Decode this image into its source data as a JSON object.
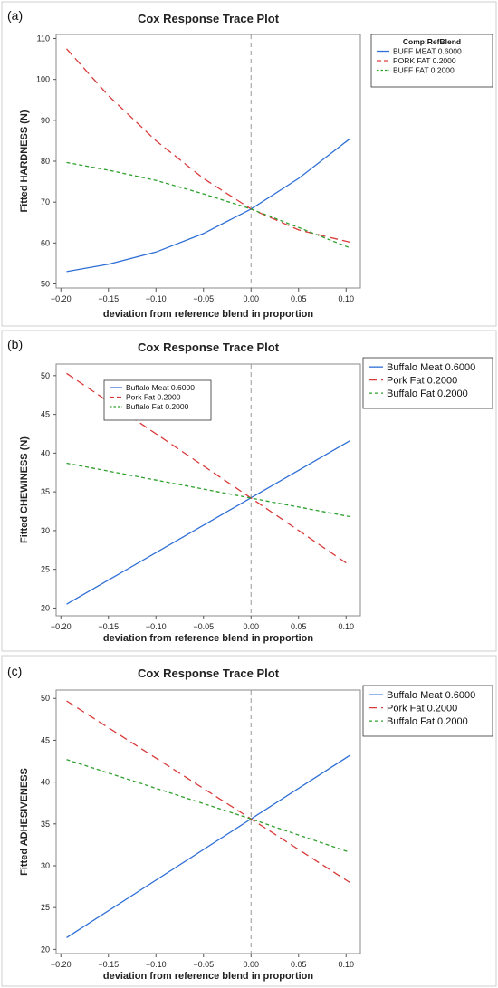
{
  "colors": {
    "series": [
      "#2f6fd6",
      "#d93a3a",
      "#2ca02c"
    ],
    "grid_reference": "#999999",
    "background": "#ffffff"
  },
  "chart_data": [
    {
      "type": "line",
      "panel_label": "(a)",
      "title": "Cox Response Trace Plot",
      "xlabel": "deviation from reference blend in proportion",
      "ylabel": "Fitted HARDNESS (N)",
      "xlim": [
        -0.205,
        0.115
      ],
      "ylim": [
        49,
        111
      ],
      "xticks": [
        -0.2,
        -0.15,
        -0.1,
        -0.05,
        0.0,
        0.05,
        0.1
      ],
      "xtick_labels": [
        "−0.20",
        "−0.15",
        "−0.10",
        "−0.05",
        "0.00",
        "0.05",
        "0.10"
      ],
      "yticks": [
        50,
        60,
        70,
        80,
        90,
        100,
        110
      ],
      "ytick_labels": [
        "50",
        "60",
        "70",
        "80",
        "90",
        "100",
        "110"
      ],
      "reference_x": 0,
      "legend": {
        "title": "Comp:RefBlend",
        "placement": "outside-top-right",
        "style": "small"
      },
      "series": [
        {
          "name": "BUFF MEAT  0.6000",
          "dash": "solid",
          "x": [
            -0.194,
            -0.15,
            -0.1,
            -0.05,
            0.0,
            0.05,
            0.104
          ],
          "y": [
            53.0,
            54.8,
            57.8,
            62.3,
            68.3,
            75.8,
            85.5
          ]
        },
        {
          "name": "PORK FAT  0.2000",
          "dash": "long",
          "x": [
            -0.194,
            -0.15,
            -0.1,
            -0.05,
            0.0,
            0.05,
            0.104
          ],
          "y": [
            107.5,
            96.0,
            85.0,
            75.8,
            68.3,
            63.2,
            60.2
          ]
        },
        {
          "name": "BUFF FAT  0.2000",
          "dash": "short",
          "x": [
            -0.194,
            -0.15,
            -0.1,
            -0.05,
            0.0,
            0.05,
            0.104
          ],
          "y": [
            79.7,
            77.8,
            75.3,
            72.0,
            68.3,
            63.8,
            58.8
          ]
        }
      ]
    },
    {
      "type": "line",
      "panel_label": "(b)",
      "title": "Cox Response Trace Plot",
      "xlabel": "deviation from reference blend in proportion",
      "ylabel": "Fitted CHEWINESS (N)",
      "xlim": [
        -0.205,
        0.115
      ],
      "ylim": [
        19,
        51.5
      ],
      "xticks": [
        -0.2,
        -0.15,
        -0.1,
        -0.05,
        0.0,
        0.05,
        0.1
      ],
      "xtick_labels": [
        "−0.20",
        "−0.15",
        "−0.10",
        "−0.05",
        "0.00",
        "0.05",
        "0.10"
      ],
      "yticks": [
        20,
        25,
        30,
        35,
        40,
        45,
        50
      ],
      "ytick_labels": [
        "20",
        "25",
        "30",
        "35",
        "40",
        "45",
        "50"
      ],
      "reference_x": 0,
      "legends": [
        {
          "placement": "inside-upper-left",
          "style": "small",
          "entries": [
            "Buffalo Meat 0.6000",
            "Pork Fat 0.2000",
            "Buffalo Fat 0.2000"
          ]
        },
        {
          "placement": "outside-top-right",
          "style": "large",
          "entries": [
            "Buffalo Meat 0.6000",
            "Pork Fat 0.2000",
            "Buffalo Fat 0.2000"
          ]
        }
      ],
      "series": [
        {
          "name": "Buffalo Meat 0.6000",
          "dash": "solid",
          "x": [
            -0.194,
            0.104
          ],
          "y": [
            20.5,
            41.6
          ]
        },
        {
          "name": "Pork Fat 0.2000",
          "dash": "long",
          "x": [
            -0.194,
            0.0,
            0.104
          ],
          "y": [
            50.3,
            34.2,
            25.5
          ]
        },
        {
          "name": "Buffalo Fat 0.2000",
          "dash": "short",
          "x": [
            -0.194,
            0.0,
            0.104
          ],
          "y": [
            38.7,
            34.2,
            31.8
          ]
        }
      ]
    },
    {
      "type": "line",
      "panel_label": "(c)",
      "title": "Cox Response Trace Plot",
      "xlabel": "deviation from reference blend in proportion",
      "ylabel": "Fitted ADHESIVENESS",
      "xlim": [
        -0.205,
        0.115
      ],
      "ylim": [
        19.5,
        51
      ],
      "xticks": [
        -0.2,
        -0.15,
        -0.1,
        -0.05,
        0.0,
        0.05,
        0.1
      ],
      "xtick_labels": [
        "−0.20",
        "−0.15",
        "−0.10",
        "−0.05",
        "0.00",
        "0.05",
        "0.10"
      ],
      "yticks": [
        20,
        25,
        30,
        35,
        40,
        45,
        50
      ],
      "ytick_labels": [
        "20",
        "25",
        "30",
        "35",
        "40",
        "45",
        "50"
      ],
      "reference_x": 0,
      "legend": {
        "placement": "outside-top-right",
        "style": "large"
      },
      "series": [
        {
          "name": "Buffalo Meat 0.6000",
          "dash": "solid",
          "x": [
            -0.194,
            0.104
          ],
          "y": [
            21.4,
            43.2
          ]
        },
        {
          "name": "Pork Fat 0.2000",
          "dash": "long",
          "x": [
            -0.194,
            0.0,
            0.104
          ],
          "y": [
            49.7,
            35.6,
            28.0
          ]
        },
        {
          "name": "Buffalo Fat 0.2000",
          "dash": "short",
          "x": [
            -0.194,
            0.0,
            0.104
          ],
          "y": [
            42.7,
            35.6,
            31.6
          ]
        }
      ]
    }
  ]
}
